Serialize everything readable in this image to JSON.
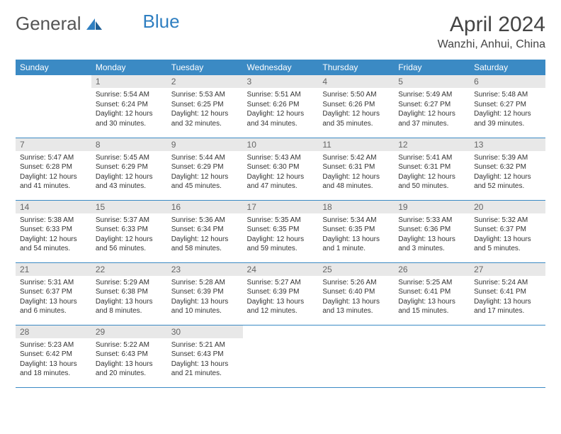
{
  "brand": {
    "part1": "General",
    "part2": "Blue"
  },
  "title": "April 2024",
  "location": "Wanzhi, Anhui, China",
  "colors": {
    "header_bg": "#3b8ac4",
    "header_text": "#ffffff",
    "daynum_bg": "#e8e8e8",
    "daynum_text": "#666666",
    "body_text": "#333333",
    "rule": "#3b8ac4",
    "logo_gray": "#555555",
    "logo_blue": "#2f7fc1"
  },
  "typography": {
    "title_fontsize": 30,
    "location_fontsize": 16,
    "dayheader_fontsize": 12,
    "daynum_fontsize": 12,
    "cell_fontsize": 10
  },
  "dayHeaders": [
    "Sunday",
    "Monday",
    "Tuesday",
    "Wednesday",
    "Thursday",
    "Friday",
    "Saturday"
  ],
  "weeks": [
    [
      {
        "num": "",
        "sunrise": "",
        "sunset": "",
        "daylight": ""
      },
      {
        "num": "1",
        "sunrise": "Sunrise: 5:54 AM",
        "sunset": "Sunset: 6:24 PM",
        "daylight": "Daylight: 12 hours and 30 minutes."
      },
      {
        "num": "2",
        "sunrise": "Sunrise: 5:53 AM",
        "sunset": "Sunset: 6:25 PM",
        "daylight": "Daylight: 12 hours and 32 minutes."
      },
      {
        "num": "3",
        "sunrise": "Sunrise: 5:51 AM",
        "sunset": "Sunset: 6:26 PM",
        "daylight": "Daylight: 12 hours and 34 minutes."
      },
      {
        "num": "4",
        "sunrise": "Sunrise: 5:50 AM",
        "sunset": "Sunset: 6:26 PM",
        "daylight": "Daylight: 12 hours and 35 minutes."
      },
      {
        "num": "5",
        "sunrise": "Sunrise: 5:49 AM",
        "sunset": "Sunset: 6:27 PM",
        "daylight": "Daylight: 12 hours and 37 minutes."
      },
      {
        "num": "6",
        "sunrise": "Sunrise: 5:48 AM",
        "sunset": "Sunset: 6:27 PM",
        "daylight": "Daylight: 12 hours and 39 minutes."
      }
    ],
    [
      {
        "num": "7",
        "sunrise": "Sunrise: 5:47 AM",
        "sunset": "Sunset: 6:28 PM",
        "daylight": "Daylight: 12 hours and 41 minutes."
      },
      {
        "num": "8",
        "sunrise": "Sunrise: 5:45 AM",
        "sunset": "Sunset: 6:29 PM",
        "daylight": "Daylight: 12 hours and 43 minutes."
      },
      {
        "num": "9",
        "sunrise": "Sunrise: 5:44 AM",
        "sunset": "Sunset: 6:29 PM",
        "daylight": "Daylight: 12 hours and 45 minutes."
      },
      {
        "num": "10",
        "sunrise": "Sunrise: 5:43 AM",
        "sunset": "Sunset: 6:30 PM",
        "daylight": "Daylight: 12 hours and 47 minutes."
      },
      {
        "num": "11",
        "sunrise": "Sunrise: 5:42 AM",
        "sunset": "Sunset: 6:31 PM",
        "daylight": "Daylight: 12 hours and 48 minutes."
      },
      {
        "num": "12",
        "sunrise": "Sunrise: 5:41 AM",
        "sunset": "Sunset: 6:31 PM",
        "daylight": "Daylight: 12 hours and 50 minutes."
      },
      {
        "num": "13",
        "sunrise": "Sunrise: 5:39 AM",
        "sunset": "Sunset: 6:32 PM",
        "daylight": "Daylight: 12 hours and 52 minutes."
      }
    ],
    [
      {
        "num": "14",
        "sunrise": "Sunrise: 5:38 AM",
        "sunset": "Sunset: 6:33 PM",
        "daylight": "Daylight: 12 hours and 54 minutes."
      },
      {
        "num": "15",
        "sunrise": "Sunrise: 5:37 AM",
        "sunset": "Sunset: 6:33 PM",
        "daylight": "Daylight: 12 hours and 56 minutes."
      },
      {
        "num": "16",
        "sunrise": "Sunrise: 5:36 AM",
        "sunset": "Sunset: 6:34 PM",
        "daylight": "Daylight: 12 hours and 58 minutes."
      },
      {
        "num": "17",
        "sunrise": "Sunrise: 5:35 AM",
        "sunset": "Sunset: 6:35 PM",
        "daylight": "Daylight: 12 hours and 59 minutes."
      },
      {
        "num": "18",
        "sunrise": "Sunrise: 5:34 AM",
        "sunset": "Sunset: 6:35 PM",
        "daylight": "Daylight: 13 hours and 1 minute."
      },
      {
        "num": "19",
        "sunrise": "Sunrise: 5:33 AM",
        "sunset": "Sunset: 6:36 PM",
        "daylight": "Daylight: 13 hours and 3 minutes."
      },
      {
        "num": "20",
        "sunrise": "Sunrise: 5:32 AM",
        "sunset": "Sunset: 6:37 PM",
        "daylight": "Daylight: 13 hours and 5 minutes."
      }
    ],
    [
      {
        "num": "21",
        "sunrise": "Sunrise: 5:31 AM",
        "sunset": "Sunset: 6:37 PM",
        "daylight": "Daylight: 13 hours and 6 minutes."
      },
      {
        "num": "22",
        "sunrise": "Sunrise: 5:29 AM",
        "sunset": "Sunset: 6:38 PM",
        "daylight": "Daylight: 13 hours and 8 minutes."
      },
      {
        "num": "23",
        "sunrise": "Sunrise: 5:28 AM",
        "sunset": "Sunset: 6:39 PM",
        "daylight": "Daylight: 13 hours and 10 minutes."
      },
      {
        "num": "24",
        "sunrise": "Sunrise: 5:27 AM",
        "sunset": "Sunset: 6:39 PM",
        "daylight": "Daylight: 13 hours and 12 minutes."
      },
      {
        "num": "25",
        "sunrise": "Sunrise: 5:26 AM",
        "sunset": "Sunset: 6:40 PM",
        "daylight": "Daylight: 13 hours and 13 minutes."
      },
      {
        "num": "26",
        "sunrise": "Sunrise: 5:25 AM",
        "sunset": "Sunset: 6:41 PM",
        "daylight": "Daylight: 13 hours and 15 minutes."
      },
      {
        "num": "27",
        "sunrise": "Sunrise: 5:24 AM",
        "sunset": "Sunset: 6:41 PM",
        "daylight": "Daylight: 13 hours and 17 minutes."
      }
    ],
    [
      {
        "num": "28",
        "sunrise": "Sunrise: 5:23 AM",
        "sunset": "Sunset: 6:42 PM",
        "daylight": "Daylight: 13 hours and 18 minutes."
      },
      {
        "num": "29",
        "sunrise": "Sunrise: 5:22 AM",
        "sunset": "Sunset: 6:43 PM",
        "daylight": "Daylight: 13 hours and 20 minutes."
      },
      {
        "num": "30",
        "sunrise": "Sunrise: 5:21 AM",
        "sunset": "Sunset: 6:43 PM",
        "daylight": "Daylight: 13 hours and 21 minutes."
      },
      {
        "num": "",
        "sunrise": "",
        "sunset": "",
        "daylight": ""
      },
      {
        "num": "",
        "sunrise": "",
        "sunset": "",
        "daylight": ""
      },
      {
        "num": "",
        "sunrise": "",
        "sunset": "",
        "daylight": ""
      },
      {
        "num": "",
        "sunrise": "",
        "sunset": "",
        "daylight": ""
      }
    ]
  ]
}
